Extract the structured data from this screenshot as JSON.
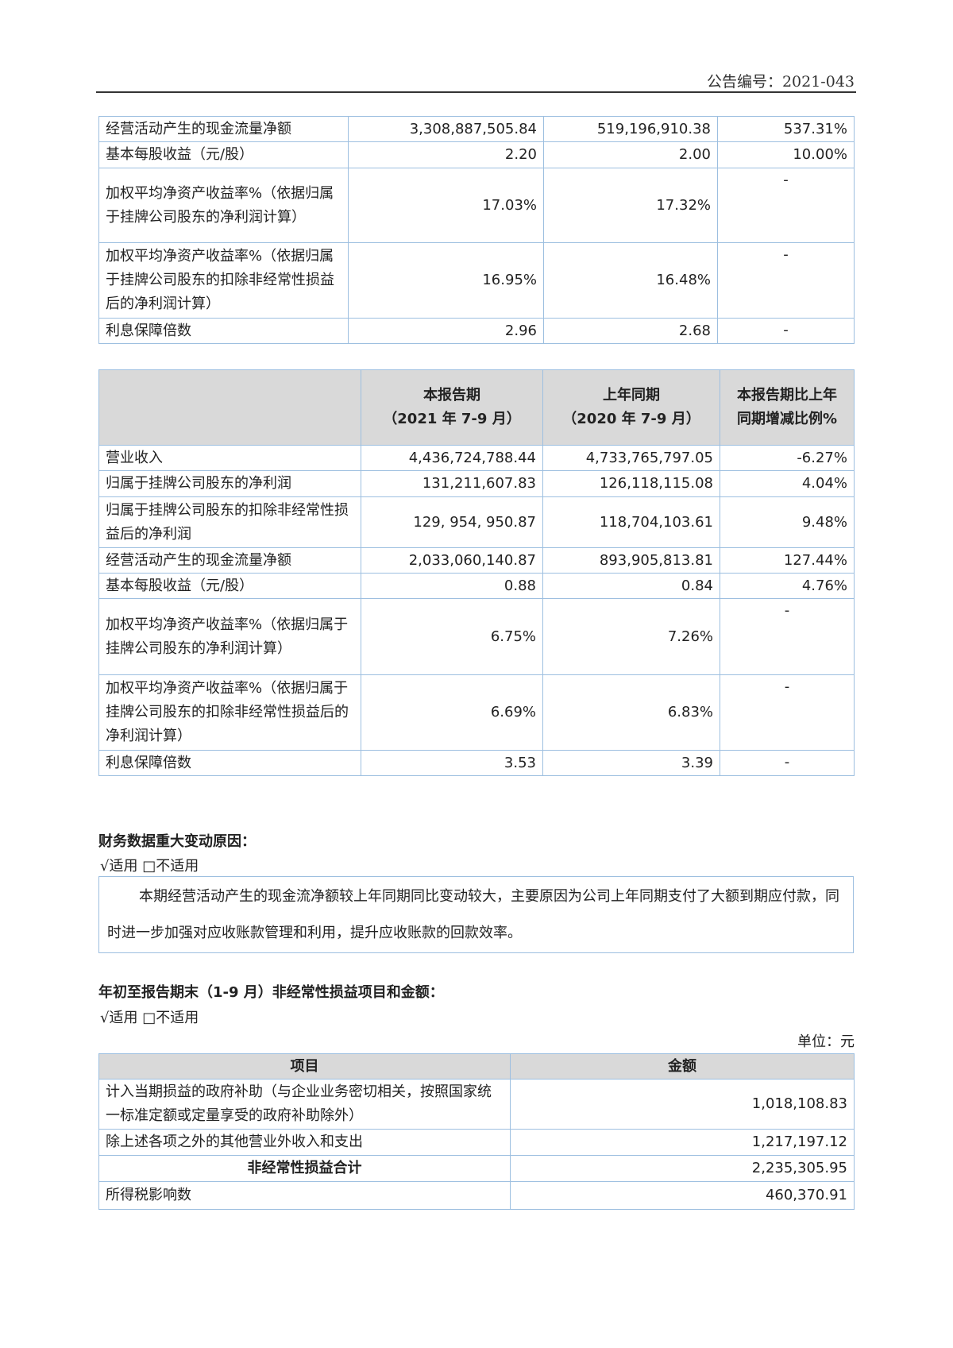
{
  "header": {
    "doc_number": "公告编号：2021-043"
  },
  "table_ytd_continued": {
    "rows": [
      {
        "item": "经营活动产生的现金流量净额",
        "current": "3,308,887,505.84",
        "prior": "519,196,910.38",
        "change": "537.31%"
      },
      {
        "item": "基本每股收益（元/股）",
        "current": "2.20",
        "prior": "2.00",
        "change": "10.00%"
      },
      {
        "item": "加权平均净资产收益率%（依据归属于挂牌公司股东的净利润计算）",
        "current": "17.03%",
        "prior": "17.32%",
        "change": "-"
      },
      {
        "item": "加权平均净资产收益率%（依据归属于挂牌公司股东的扣除非经常性损益后的净利润计算）",
        "current": "16.95%",
        "prior": "16.48%",
        "change": "-"
      },
      {
        "item": "利息保障倍数",
        "current": "2.96",
        "prior": "2.68",
        "change": "-"
      }
    ]
  },
  "table_q3": {
    "headers": {
      "item": "",
      "current": "本报告期\n（2021 年 7-9 月）",
      "prior": "上年同期\n（2020 年 7-9 月）",
      "change": "本报告期比上年同期增减比例%"
    },
    "rows": [
      {
        "item": "营业收入",
        "current": "4,436,724,788.44",
        "prior": "4,733,765,797.05",
        "change": "-6.27%"
      },
      {
        "item": "归属于挂牌公司股东的净利润",
        "current": "131,211,607.83",
        "prior": "126,118,115.08",
        "change": "4.04%"
      },
      {
        "item": "归属于挂牌公司股东的扣除非经常性损益后的净利润",
        "current": "129, 954, 950.87",
        "prior": "118,704,103.61",
        "change": "9.48%"
      },
      {
        "item": "经营活动产生的现金流量净额",
        "current": "2,033,060,140.87",
        "prior": "893,905,813.81",
        "change": "127.44%"
      },
      {
        "item": "基本每股收益（元/股）",
        "current": "0.88",
        "prior": "0.84",
        "change": "4.76%"
      },
      {
        "item": "加权平均净资产收益率%（依据归属于挂牌公司股东的净利润计算）",
        "current": "6.75%",
        "prior": "7.26%",
        "change": "-"
      },
      {
        "item": "加权平均净资产收益率%（依据归属于挂牌公司股东的扣除非经常性损益后的净利润计算）",
        "current": "6.69%",
        "prior": "6.83%",
        "change": "-"
      },
      {
        "item": "利息保障倍数",
        "current": "3.53",
        "prior": "3.39",
        "change": "-"
      }
    ]
  },
  "major_change": {
    "title": "财务数据重大变动原因：",
    "applicability": "√适用 □不适用",
    "text": "本期经营活动产生的现金流净额较上年同期同比变动较大，主要原因为公司上年同期支付了大额到期应付款，同时进一步加强对应收账款管理和利用，提升应收账款的回款效率。"
  },
  "non_recurring": {
    "title": "年初至报告期末（1-9 月）非经常性损益项目和金额：",
    "applicability": "√适用 □不适用",
    "unit": "单位：元",
    "headers": {
      "item": "项目",
      "amount": "金额"
    },
    "rows": [
      {
        "item": "计入当期损益的政府补助（与企业业务密切相关，按照国家统一标准定额或定量享受的政府补助除外）",
        "amount": "1,018,108.83",
        "bold": false
      },
      {
        "item": "除上述各项之外的其他营业外收入和支出",
        "amount": "1,217,197.12",
        "bold": false
      },
      {
        "item": "非经常性损益合计",
        "amount": "2,235,305.95",
        "bold": true
      },
      {
        "item": "所得税影响数",
        "amount": "460,370.91",
        "bold": false
      }
    ]
  }
}
